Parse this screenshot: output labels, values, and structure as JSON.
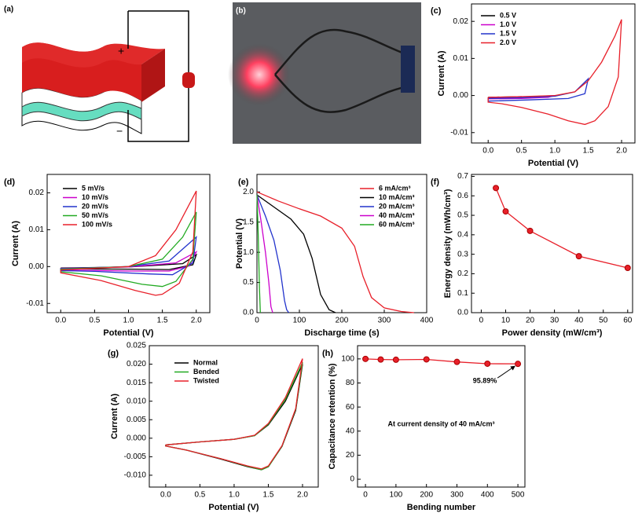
{
  "figure_panels": [
    {
      "label": "(a)",
      "annotations": [
        "+",
        "−"
      ]
    },
    {
      "label": "(b)"
    }
  ],
  "chart_data": [
    {
      "type": "line",
      "label": "(c)",
      "xlabel": "Potential (V)",
      "ylabel": "Current (A)",
      "xlim": [
        -0.25,
        2.2
      ],
      "ylim": [
        -0.0128,
        0.0247
      ],
      "xticks": [
        {
          "value": 0,
          "label": "0.0"
        },
        {
          "value": 0.5,
          "label": "0.5"
        },
        {
          "value": 1,
          "label": "1.0"
        },
        {
          "value": 1.5,
          "label": "1.5"
        },
        {
          "value": 2,
          "label": "2.0"
        }
      ],
      "yticks": [
        {
          "value": -0.01,
          "label": "-0.01"
        },
        {
          "value": 0,
          "label": "0.00"
        },
        {
          "value": 0.01,
          "label": "0.01"
        },
        {
          "value": 0.02,
          "label": "0.02"
        }
      ],
      "series": [
        {
          "name": "0.5 V",
          "color": "#000000",
          "x": [
            0,
            0.5,
            0.45,
            0,
            0
          ],
          "values": [
            -0.0005,
            -0.0003,
            -0.0006,
            -0.0007,
            -0.0005
          ]
        },
        {
          "name": "1.0 V",
          "color": "#cc00cc",
          "x": [
            0,
            0.5,
            1.0,
            0.9,
            0.5,
            0,
            0
          ],
          "values": [
            -0.0006,
            -0.0004,
            0,
            -0.0005,
            -0.0008,
            -0.0009,
            -0.0006
          ]
        },
        {
          "name": "1.5 V",
          "color": "#2233cc",
          "x": [
            0,
            0.5,
            1.0,
            1.3,
            1.5,
            1.45,
            1.2,
            0.6,
            0,
            0
          ],
          "values": [
            -0.0008,
            -0.0006,
            -0.0002,
            0.001,
            0.0045,
            0.0005,
            -0.0008,
            -0.0012,
            -0.0015,
            -0.0008
          ]
        },
        {
          "name": "2.0 V",
          "color": "#e8202a",
          "x": [
            0,
            0.5,
            1.0,
            1.3,
            1.5,
            1.7,
            1.9,
            2.0,
            1.95,
            1.8,
            1.6,
            1.45,
            1.2,
            0.9,
            0.5,
            0.2,
            0,
            0
          ],
          "values": [
            -0.0005,
            -0.0003,
            0,
            0.001,
            0.004,
            0.009,
            0.016,
            0.0205,
            0.005,
            -0.003,
            -0.0068,
            -0.0078,
            -0.0068,
            -0.005,
            -0.0032,
            -0.0022,
            -0.0018,
            -0.0005
          ]
        }
      ]
    },
    {
      "type": "line",
      "label": "(d)",
      "xlabel": "Potential (V)",
      "ylabel": "Current (A)",
      "xlim": [
        -0.2,
        2.2
      ],
      "ylim": [
        -0.0125,
        0.025
      ],
      "xticks": [
        {
          "value": 0,
          "label": "0.0"
        },
        {
          "value": 0.5,
          "label": "0.5"
        },
        {
          "value": 1,
          "label": "1.0"
        },
        {
          "value": 1.5,
          "label": "1.5"
        },
        {
          "value": 2,
          "label": "2.0"
        }
      ],
      "yticks": [
        {
          "value": -0.01,
          "label": "-0.01"
        },
        {
          "value": 0,
          "label": "0.00"
        },
        {
          "value": 0.01,
          "label": "0.01"
        },
        {
          "value": 0.02,
          "label": "0.02"
        }
      ],
      "series": [
        {
          "name": "5 mV/s",
          "color": "#000000",
          "x": [
            0,
            1,
            1.8,
            2.0,
            1.95,
            1.6,
            1.0,
            0,
            0
          ],
          "values": [
            -0.0004,
            -0.0001,
            0.0008,
            0.0032,
            0.0005,
            -0.0008,
            -0.0007,
            -0.0006,
            -0.0004
          ]
        },
        {
          "name": "10 mV/s",
          "color": "#cc00cc",
          "x": [
            0,
            1,
            1.7,
            2.0,
            1.9,
            1.6,
            1.0,
            0,
            0
          ],
          "values": [
            -0.0005,
            -0.0001,
            0.001,
            0.004,
            0.0002,
            -0.0012,
            -0.0012,
            -0.0009,
            -0.0005
          ]
        },
        {
          "name": "20 mV/s",
          "color": "#2233cc",
          "x": [
            0,
            1,
            1.6,
            2.0,
            1.95,
            1.65,
            1.3,
            0.5,
            0,
            0
          ],
          "values": [
            -0.0006,
            0,
            0.0015,
            0.008,
            0.001,
            -0.0022,
            -0.002,
            -0.0013,
            -0.0011,
            -0.0006
          ]
        },
        {
          "name": "50 mV/s",
          "color": "#22aa22",
          "x": [
            0,
            1,
            1.5,
            1.8,
            2.0,
            1.95,
            1.7,
            1.5,
            1.2,
            0.6,
            0,
            0
          ],
          "values": [
            -0.0007,
            0,
            0.002,
            0.008,
            0.0148,
            0.002,
            -0.004,
            -0.0054,
            -0.0048,
            -0.0025,
            -0.0014,
            -0.0007
          ]
        },
        {
          "name": "100 mV/s",
          "color": "#e8202a",
          "x": [
            0,
            1,
            1.4,
            1.7,
            2.0,
            1.95,
            1.75,
            1.5,
            1.4,
            1.1,
            0.6,
            0,
            0
          ],
          "values": [
            -0.0009,
            0,
            0.003,
            0.01,
            0.0205,
            0.004,
            -0.0045,
            -0.0075,
            -0.0078,
            -0.0065,
            -0.0038,
            -0.0017,
            -0.0009
          ]
        }
      ]
    },
    {
      "type": "line",
      "label": "(e)",
      "xlabel": "Discharge time (s)",
      "ylabel": "Potential (V)",
      "xlim": [
        0,
        400
      ],
      "ylim": [
        0,
        2.29
      ],
      "xticks": [
        0,
        100,
        200,
        300,
        400
      ],
      "yticks": [
        {
          "value": 0,
          "label": "0.0"
        },
        {
          "value": 0.5,
          "label": "0.5"
        },
        {
          "value": 1,
          "label": "1.0"
        },
        {
          "value": 1.5,
          "label": "1.5"
        },
        {
          "value": 2,
          "label": "2.0"
        }
      ],
      "series": [
        {
          "name": "6 mA/cm³",
          "color": "#e8202a",
          "x": [
            0,
            50,
            100,
            150,
            200,
            230,
            250,
            270,
            300,
            340,
            370
          ],
          "values": [
            2.0,
            1.85,
            1.72,
            1.6,
            1.4,
            1.1,
            0.6,
            0.25,
            0.08,
            0.02,
            0
          ]
        },
        {
          "name": "10 mA/cm³",
          "color": "#000000",
          "x": [
            0,
            40,
            80,
            110,
            130,
            150,
            170,
            185
          ],
          "values": [
            1.95,
            1.75,
            1.55,
            1.3,
            0.9,
            0.3,
            0.05,
            0
          ]
        },
        {
          "name": "20 mA/cm³",
          "color": "#2233cc",
          "x": [
            0,
            20,
            40,
            55,
            65,
            70,
            75
          ],
          "values": [
            1.95,
            1.6,
            1.2,
            0.7,
            0.2,
            0.05,
            0
          ]
        },
        {
          "name": "40 mA/cm³",
          "color": "#cc00cc",
          "x": [
            0,
            10,
            20,
            28,
            33,
            37
          ],
          "values": [
            1.95,
            1.5,
            1.0,
            0.5,
            0.1,
            0
          ]
        },
        {
          "name": "60 mA/cm³",
          "color": "#22aa22",
          "x": [
            0,
            3,
            6,
            8
          ],
          "values": [
            1.95,
            1.3,
            0.4,
            0
          ]
        }
      ]
    },
    {
      "type": "line",
      "label": "(f)",
      "xlabel": "Power density (mW/cm³)",
      "ylabel": "Energy density (mWh/cm³)",
      "xlim": [
        -4,
        62
      ],
      "ylim": [
        0,
        0.71
      ],
      "markers": true,
      "color": "#e8202a",
      "xticks": [
        0,
        10,
        20,
        30,
        40,
        50,
        60
      ],
      "yticks": [
        {
          "value": 0,
          "label": "0.0"
        },
        {
          "value": 0.1,
          "label": "0.1"
        },
        {
          "value": 0.2,
          "label": "0.2"
        },
        {
          "value": 0.3,
          "label": "0.3"
        },
        {
          "value": 0.4,
          "label": "0.4"
        },
        {
          "value": 0.5,
          "label": "0.5"
        },
        {
          "value": 0.6,
          "label": "0.6"
        },
        {
          "value": 0.7,
          "label": "0.7"
        }
      ],
      "x": [
        6,
        10,
        20,
        40,
        60
      ],
      "values": [
        0.64,
        0.52,
        0.42,
        0.29,
        0.23
      ]
    },
    {
      "type": "line",
      "label": "(g)",
      "xlabel": "Potential (V)",
      "ylabel": "Current (A)",
      "xlim": [
        -0.24,
        2.23
      ],
      "ylim": [
        -0.0132,
        0.025
      ],
      "xticks": [
        {
          "value": 0,
          "label": "0.0"
        },
        {
          "value": 0.5,
          "label": "0.5"
        },
        {
          "value": 1,
          "label": "1.0"
        },
        {
          "value": 1.5,
          "label": "1.5"
        },
        {
          "value": 2,
          "label": "2.0"
        }
      ],
      "yticks": [
        {
          "value": -0.01,
          "label": "-0.010"
        },
        {
          "value": -0.005,
          "label": "-0.005"
        },
        {
          "value": 0,
          "label": "0.000"
        },
        {
          "value": 0.005,
          "label": "0.005"
        },
        {
          "value": 0.01,
          "label": "0.010"
        },
        {
          "value": 0.015,
          "label": "0.015"
        },
        {
          "value": 0.02,
          "label": "0.020"
        },
        {
          "value": 0.025,
          "label": "0.025"
        }
      ],
      "series": [
        {
          "name": "Normal",
          "color": "#000000",
          "x": [
            0,
            0.5,
            1.0,
            1.3,
            1.5,
            1.75,
            2.0,
            1.9,
            1.7,
            1.5,
            1.4,
            1.2,
            0.8,
            0.3,
            0,
            0
          ],
          "values": [
            -0.0018,
            -0.001,
            -0.0003,
            0.0007,
            0.0036,
            0.01,
            0.02,
            0.0075,
            -0.0022,
            -0.0077,
            -0.0085,
            -0.0077,
            -0.0056,
            -0.0032,
            -0.0021,
            -0.0018
          ]
        },
        {
          "name": "Bended",
          "color": "#22aa22",
          "x": [
            0,
            0.5,
            1.0,
            1.3,
            1.5,
            1.75,
            2.0,
            1.9,
            1.7,
            1.5,
            1.4,
            1.2,
            0.8,
            0.3,
            0,
            0
          ],
          "values": [
            -0.0018,
            -0.001,
            -0.0003,
            0.0007,
            0.0038,
            0.0105,
            0.0205,
            0.0078,
            -0.0021,
            -0.0077,
            -0.0085,
            -0.0076,
            -0.0055,
            -0.0032,
            -0.0021,
            -0.0018
          ]
        },
        {
          "name": "Twisted",
          "color": "#e8202a",
          "x": [
            0,
            0.5,
            1.0,
            1.3,
            1.5,
            1.75,
            2.0,
            1.9,
            1.7,
            1.5,
            1.4,
            1.2,
            0.8,
            0.3,
            0,
            0
          ],
          "values": [
            -0.0018,
            -0.001,
            -0.0003,
            0.0008,
            0.004,
            0.011,
            0.0215,
            0.008,
            -0.002,
            -0.0075,
            -0.0083,
            -0.0075,
            -0.0055,
            -0.0032,
            -0.0021,
            -0.0018
          ]
        }
      ]
    },
    {
      "type": "line",
      "label": "(h)",
      "xlabel": "Bending number",
      "ylabel": "Capacitance retention (%)",
      "xlim": [
        -26,
        523
      ],
      "ylim": [
        -6.5,
        111
      ],
      "markers": true,
      "color": "#e8202a",
      "xticks": [
        0,
        100,
        200,
        300,
        400,
        500
      ],
      "yticks": [
        0,
        20,
        40,
        60,
        80,
        100
      ],
      "x": [
        0,
        50,
        100,
        200,
        300,
        400,
        500
      ],
      "values": [
        100,
        99.5,
        99.3,
        99.6,
        97.5,
        96,
        95.89
      ],
      "annotations": [
        "95.89%",
        "At current density of 40 mA/cm³"
      ]
    }
  ]
}
